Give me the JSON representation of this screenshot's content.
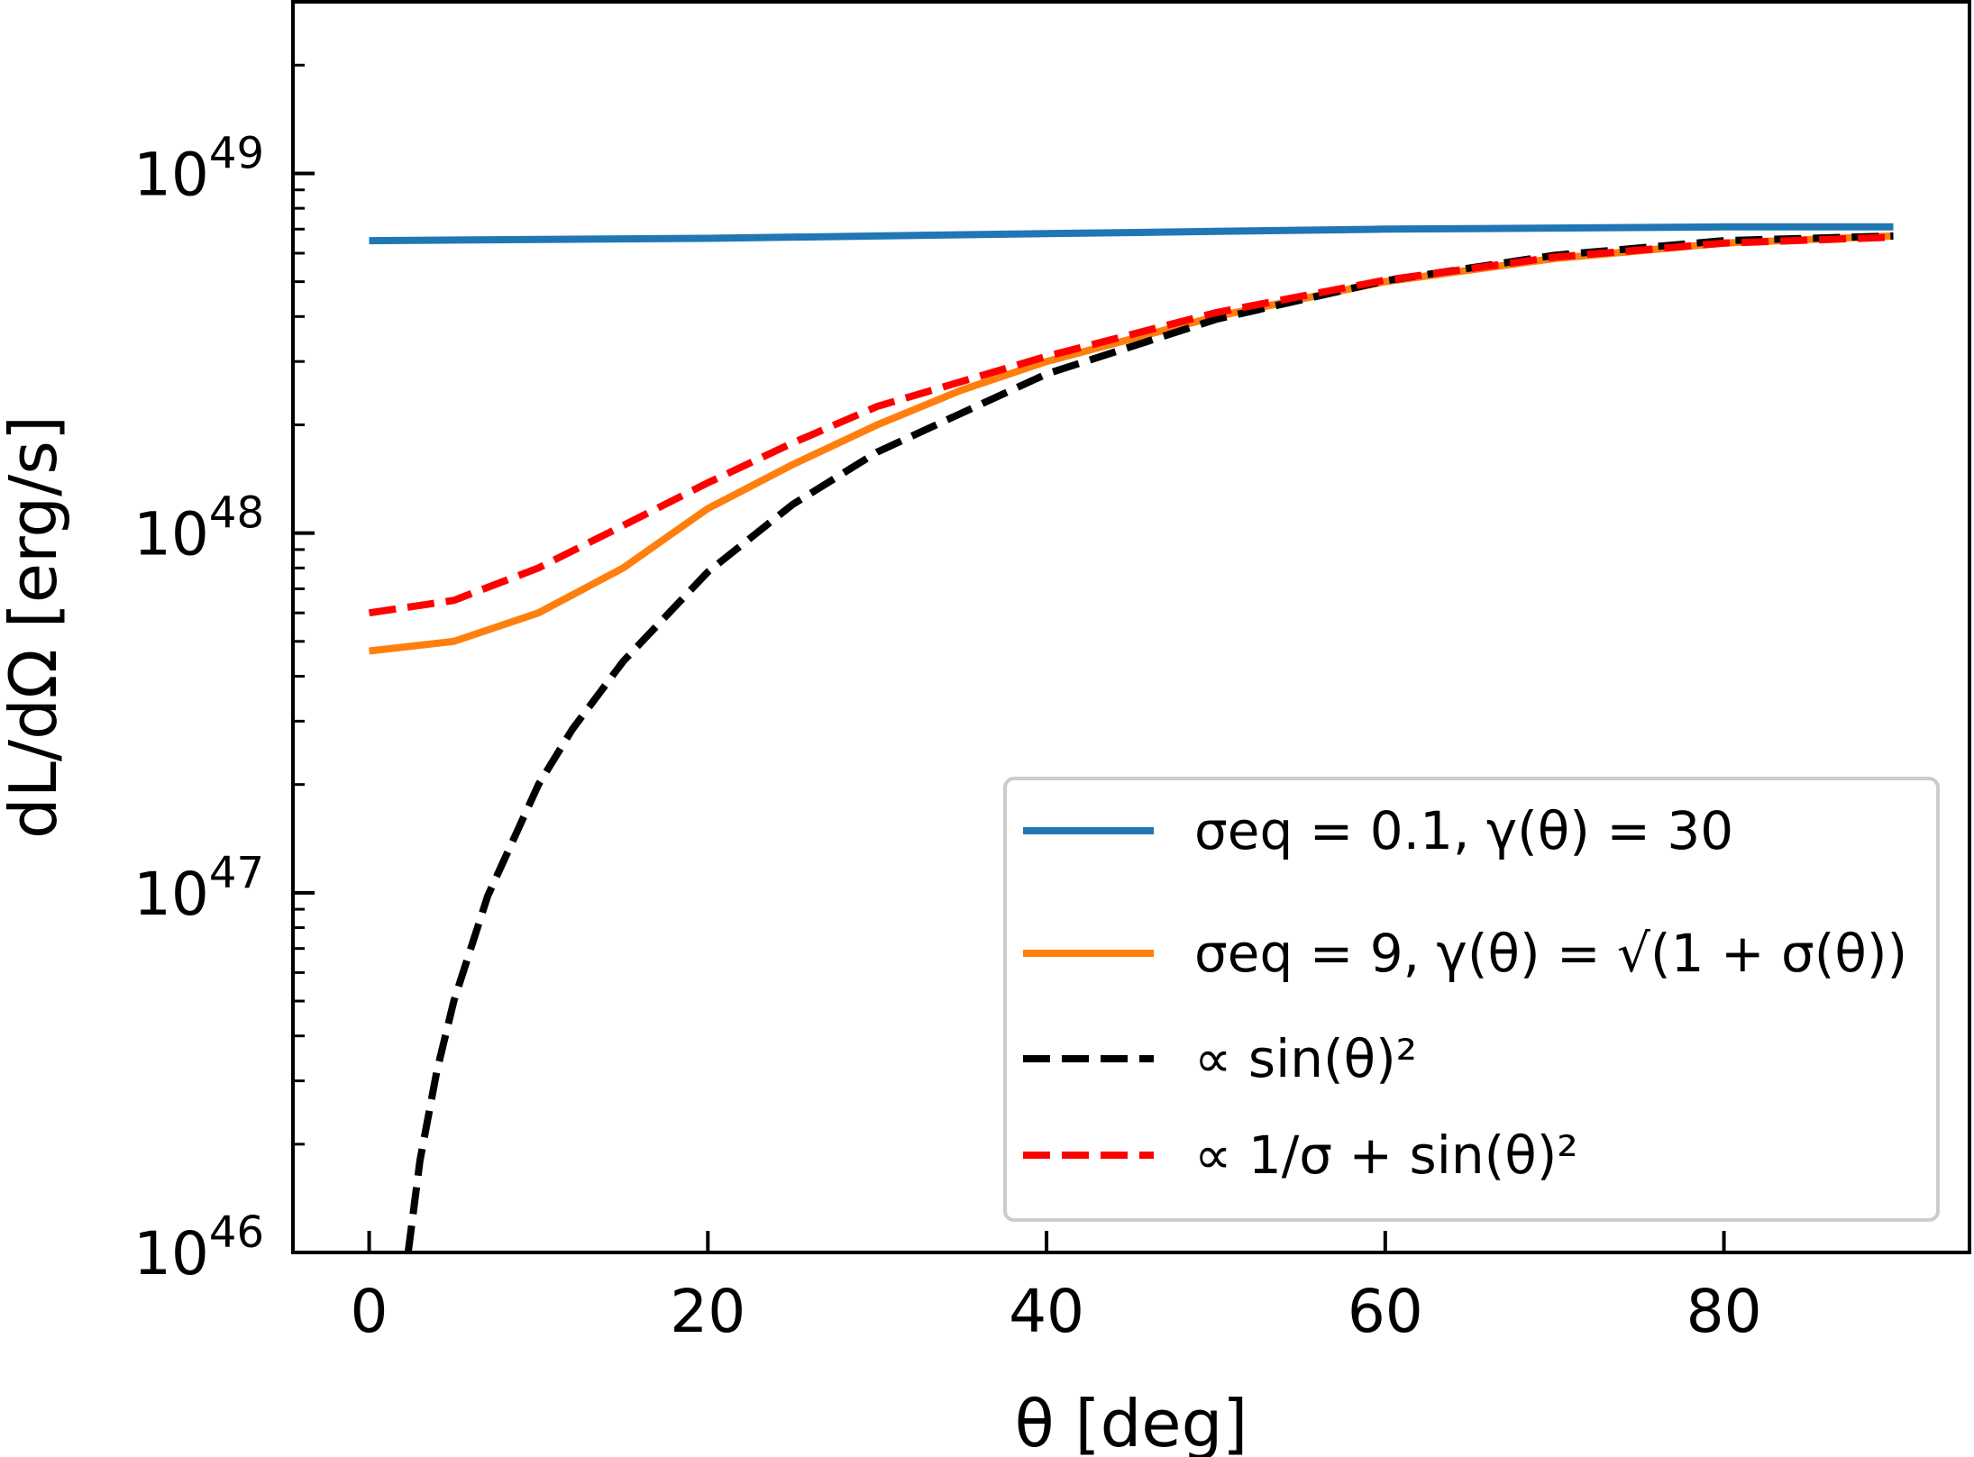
{
  "chart_data": {
    "type": "line",
    "xlabel": "θ [deg]",
    "ylabel": "dL/dΩ [erg/s]",
    "xlim": [
      -4.5,
      94.5
    ],
    "ylim": [
      1e+46,
      3e+49
    ],
    "yscale": "log",
    "x_ticks": [
      0,
      20,
      40,
      60,
      80
    ],
    "x_tick_labels": [
      "0",
      "20",
      "40",
      "60",
      "80"
    ],
    "y_major_ticks": [
      1e+46,
      1e+47,
      1e+48,
      1e+49
    ],
    "y_tick_labels": [
      {
        "base": "10",
        "exp": "46"
      },
      {
        "base": "10",
        "exp": "47"
      },
      {
        "base": "10",
        "exp": "48"
      },
      {
        "base": "10",
        "exp": "49"
      }
    ],
    "grid": false,
    "legend_position": "lower right",
    "series": [
      {
        "name": "σeq = 0.1, γ(θ) = 30",
        "color": "#1f77b4",
        "style": "solid",
        "x": [
          0,
          10,
          20,
          30,
          40,
          50,
          60,
          70,
          80,
          90
        ],
        "y": [
          6.5e+48,
          6.55e+48,
          6.6e+48,
          6.7e+48,
          6.8e+48,
          6.9e+48,
          7e+48,
          7.05e+48,
          7.1e+48,
          7.1e+48
        ]
      },
      {
        "name": "σeq = 9, γ(θ) = √(1 + σ(θ))",
        "color": "#ff7f0e",
        "style": "solid",
        "x": [
          0,
          5,
          10,
          15,
          20,
          25,
          30,
          35,
          40,
          50,
          60,
          70,
          80,
          90
        ],
        "y": [
          4.7e+47,
          5e+47,
          6e+47,
          8e+47,
          1.17e+48,
          1.55e+48,
          2e+48,
          2.5e+48,
          3e+48,
          4e+48,
          5e+48,
          5.8e+48,
          6.4e+48,
          6.7e+48
        ]
      },
      {
        "name": "∝ sin(θ)²",
        "color": "#000000",
        "style": "dashed",
        "x": [
          2.3,
          3,
          4,
          5,
          7,
          10,
          12,
          15,
          20,
          25,
          30,
          40,
          50,
          60,
          70,
          80,
          90
        ],
        "y": [
          1e+46,
          1.8e+46,
          3.2e+46,
          5e+46,
          9.8e+46,
          2e+47,
          2.85e+47,
          4.4e+47,
          7.8e+47,
          1.2e+48,
          1.68e+48,
          2.77e+48,
          3.93e+48,
          5.03e+48,
          5.92e+48,
          6.5e+48,
          6.7e+48
        ]
      },
      {
        "name": "∝ 1/σ + sin(θ)²",
        "color": "#ff0000",
        "style": "dashed",
        "x": [
          0,
          5,
          10,
          15,
          20,
          25,
          30,
          40,
          50,
          60,
          70,
          80,
          90
        ],
        "y": [
          6e+47,
          6.5e+47,
          8e+47,
          1.05e+48,
          1.38e+48,
          1.78e+48,
          2.25e+48,
          3.1e+48,
          4.1e+48,
          5.05e+48,
          5.85e+48,
          6.4e+48,
          6.65e+48
        ]
      }
    ]
  }
}
